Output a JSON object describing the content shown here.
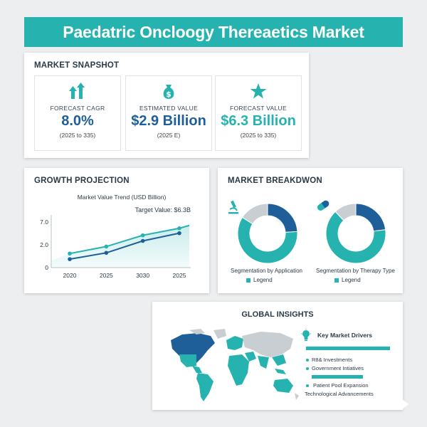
{
  "header": {
    "title": "Paedatric Oncloogy Thereaetics Market"
  },
  "snapshot": {
    "title": "MARKET SNAPSHOT",
    "kpis": [
      {
        "icon": "arrows-up-icon",
        "label": "FORECAST CAGR",
        "value": "8.0%",
        "sub": "(2025 to 335)",
        "color": "#1f5f99"
      },
      {
        "icon": "money-bag-icon",
        "label": "ESTIMATED VALUE",
        "value": "$2.9 Billion",
        "sub": "(2025 E)",
        "color": "#1f5f99"
      },
      {
        "icon": "star-icon",
        "label": "FORECAST VALUE",
        "value": "$6.3 Billion",
        "sub": "(2025 to 335)",
        "color": "#26b3b0"
      }
    ]
  },
  "growth": {
    "title": "GROWTH PROJECTION",
    "chart_title": "Market Value Trend (USD Billion)",
    "annotation": "Target Value: $6.3B"
  },
  "breakdown": {
    "title": "MARKET BREAKDWON",
    "charts": [
      {
        "icon": "microscope-icon",
        "caption": "Segmentation by Application",
        "legend": "Legend"
      },
      {
        "icon": "pill-icon",
        "caption": "Segmentation by Therapy Type",
        "legend": "Legend"
      }
    ]
  },
  "insights": {
    "title": "GLOBAL INSIGHTS",
    "drivers_title": "Key Market Drivers",
    "drivers": [
      "R8& Investments",
      "Government Intiatives",
      "Patient Pool Expansion",
      "Technological Advancements"
    ]
  },
  "colors": {
    "teal": "#26b3b0",
    "navy": "#1f5f99",
    "grey": "#c9ced2"
  },
  "chart_data": [
    {
      "type": "line",
      "title": "Market Value Trend (USD Billion)",
      "x": [
        "2020",
        "2025",
        "3030",
        "2025"
      ],
      "ytick_labels": [
        "0",
        "2.0",
        "7.0"
      ],
      "series": [
        {
          "values": [
            2.0,
            3.0,
            4.6,
            5.6
          ]
        },
        {
          "values": [
            1.2,
            2.1,
            3.8,
            4.9
          ]
        }
      ],
      "ylim": [
        0,
        7.5
      ],
      "annotation": "Target Value: $6.3B",
      "grid": false
    },
    {
      "type": "pie",
      "title": "Segmentation by Application",
      "values": [
        60,
        24,
        16
      ],
      "colors": [
        "#26b3b0",
        "#1f5f99",
        "#c9ced2"
      ]
    },
    {
      "type": "pie",
      "title": "Segmentation by Therapy Type",
      "values": [
        65,
        23,
        12
      ],
      "colors": [
        "#26b3b0",
        "#1f5f99",
        "#c9ced2"
      ]
    }
  ]
}
